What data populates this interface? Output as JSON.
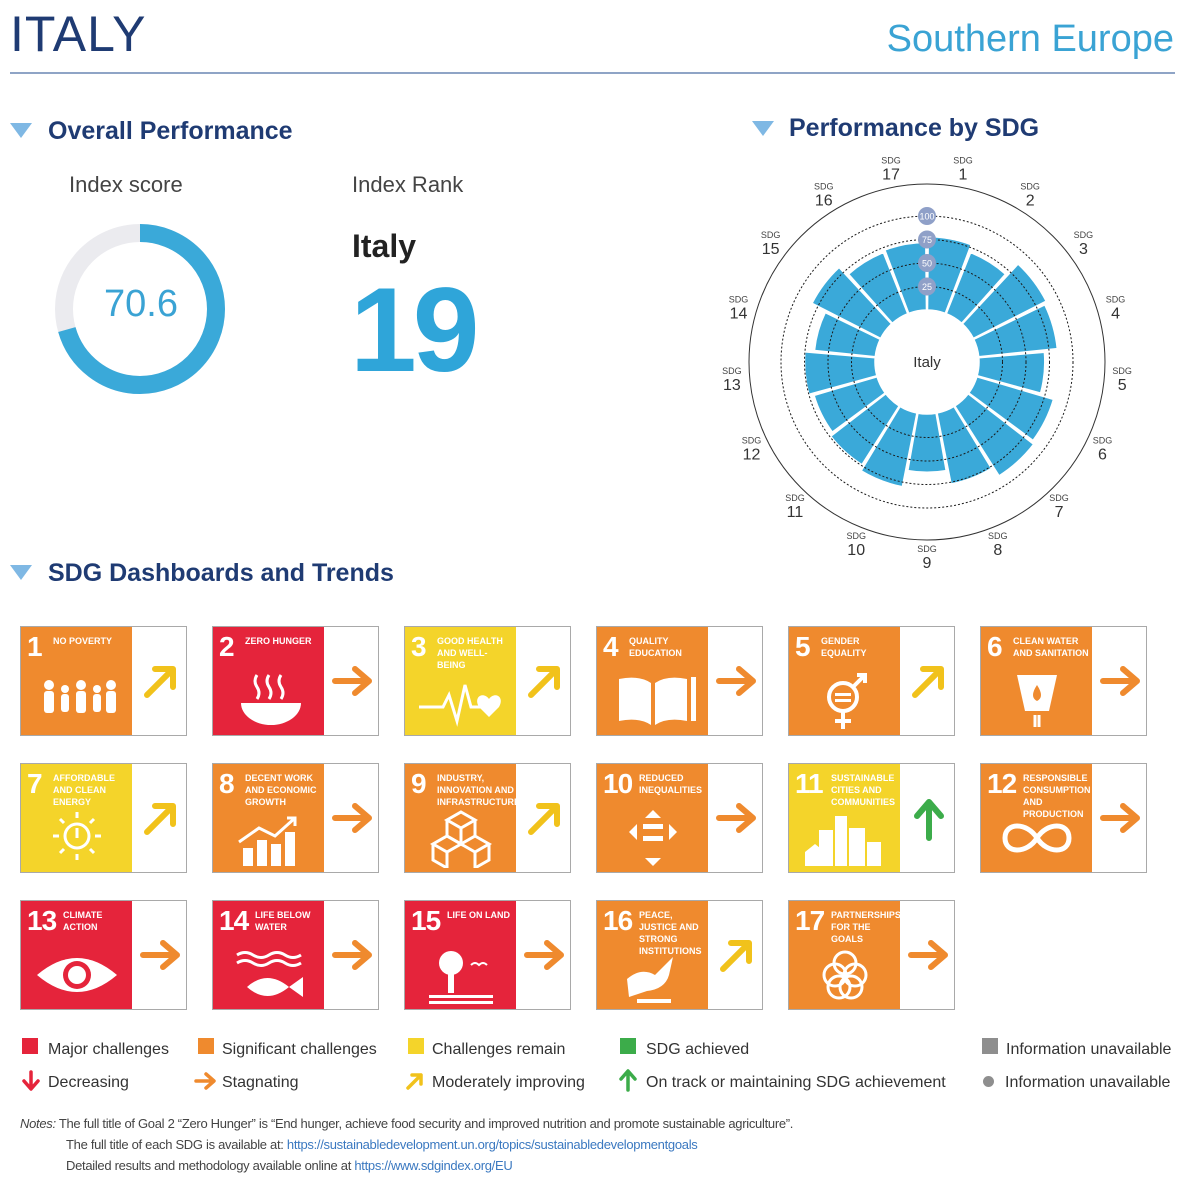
{
  "header": {
    "country": "ITALY",
    "region": "Southern Europe"
  },
  "overall": {
    "title": "Overall Performance",
    "score_label": "Index score",
    "score_value": "70.6",
    "score_fraction": 0.706,
    "rank_label": "Index Rank",
    "rank_country": "Italy",
    "rank_value": "19"
  },
  "performance_title": "Performance by SDG",
  "dashboards_title": "SDG Dashboards and Trends",
  "colors": {
    "red": "#e5243b",
    "orange": "#ef8a2e",
    "yellow": "#f4d42a",
    "green": "#3cac4a",
    "grey": "#8e8e8e",
    "blue": "#3aa9d9",
    "navy": "#1f3b73",
    "arrow_orange": "#ef8a2e",
    "arrow_yellow": "#f1c21b",
    "arrow_green": "#3cac4a",
    "arrow_red": "#e5243b"
  },
  "chart_data": {
    "type": "radial-bar",
    "center_label": "Italy",
    "scale_labels": [
      "25",
      "50",
      "75",
      "100"
    ],
    "ylim": [
      0,
      100
    ],
    "sdg_prefix": "SDG",
    "categories": [
      "1",
      "2",
      "3",
      "4",
      "5",
      "6",
      "7",
      "8",
      "9",
      "10",
      "11",
      "12",
      "13",
      "14",
      "15",
      "16",
      "17"
    ],
    "values": [
      78,
      70,
      87,
      84,
      70,
      85,
      88,
      77,
      62,
      80,
      74,
      70,
      75,
      65,
      82,
      70,
      72
    ]
  },
  "tiles": [
    {
      "num": "1",
      "name": "No Poverty",
      "color": "orange",
      "trend": "moderate",
      "icon": "family-icon"
    },
    {
      "num": "2",
      "name": "Zero Hunger",
      "color": "red",
      "trend": "stagnating",
      "icon": "bowl-icon"
    },
    {
      "num": "3",
      "name": "Good Health and Well-Being",
      "color": "yellow",
      "trend": "moderate",
      "icon": "heartbeat-icon"
    },
    {
      "num": "4",
      "name": "Quality Education",
      "color": "orange",
      "trend": "stagnating",
      "icon": "book-icon"
    },
    {
      "num": "5",
      "name": "Gender Equality",
      "color": "orange",
      "trend": "moderate",
      "icon": "gender-icon"
    },
    {
      "num": "6",
      "name": "Clean Water and Sanitation",
      "color": "orange",
      "trend": "stagnating",
      "icon": "water-icon"
    },
    {
      "num": "7",
      "name": "Affordable and Clean Energy",
      "color": "yellow",
      "trend": "moderate",
      "icon": "sun-icon"
    },
    {
      "num": "8",
      "name": "Decent Work and Economic Growth",
      "color": "orange",
      "trend": "stagnating",
      "icon": "growth-chart-icon"
    },
    {
      "num": "9",
      "name": "Industry, Innovation and Infrastructure",
      "color": "orange",
      "trend": "moderate",
      "icon": "cubes-icon"
    },
    {
      "num": "10",
      "name": "Reduced Inequalities",
      "color": "orange",
      "trend": "stagnating",
      "icon": "equality-icon"
    },
    {
      "num": "11",
      "name": "Sustainable Cities and Communities",
      "color": "yellow",
      "trend": "on_track",
      "icon": "city-icon"
    },
    {
      "num": "12",
      "name": "Responsible Consumption and Production",
      "color": "orange",
      "trend": "stagnating",
      "icon": "infinity-icon"
    },
    {
      "num": "13",
      "name": "Climate Action",
      "color": "red",
      "trend": "stagnating",
      "icon": "eye-globe-icon"
    },
    {
      "num": "14",
      "name": "Life Below Water",
      "color": "red",
      "trend": "stagnating",
      "icon": "fish-icon"
    },
    {
      "num": "15",
      "name": "Life on Land",
      "color": "red",
      "trend": "stagnating",
      "icon": "tree-icon"
    },
    {
      "num": "16",
      "name": "Peace, Justice and Strong Institutions",
      "color": "orange",
      "trend": "moderate",
      "icon": "dove-icon"
    },
    {
      "num": "17",
      "name": "Partnerships for the Goals",
      "color": "orange",
      "trend": "stagnating",
      "icon": "rings-icon"
    }
  ],
  "legend": {
    "major": "Major challenges",
    "significant": "Significant challenges",
    "remain": "Challenges remain",
    "achieved": "SDG achieved",
    "info_unavailable_1": "Information unavailable",
    "decreasing": "Decreasing",
    "stagnating": "Stagnating",
    "moderate": "Moderately improving",
    "on_track": "On track or maintaining SDG achievement",
    "info_unavailable_2": "Information unavailable"
  },
  "notes": {
    "label": "Notes:",
    "line1": "The full title of Goal 2 “Zero Hunger” is “End hunger, achieve food security and improved nutrition and promote sustainable agriculture”.",
    "line2_prefix": "The full title of each SDG is available at: ",
    "line2_link": "https://sustainabledevelopment.un.org/topics/sustainabledevelopmentgoals",
    "line3_prefix": "Detailed results and methodology available online at ",
    "line3_link": "https://www.sdgindex.org/EU"
  }
}
